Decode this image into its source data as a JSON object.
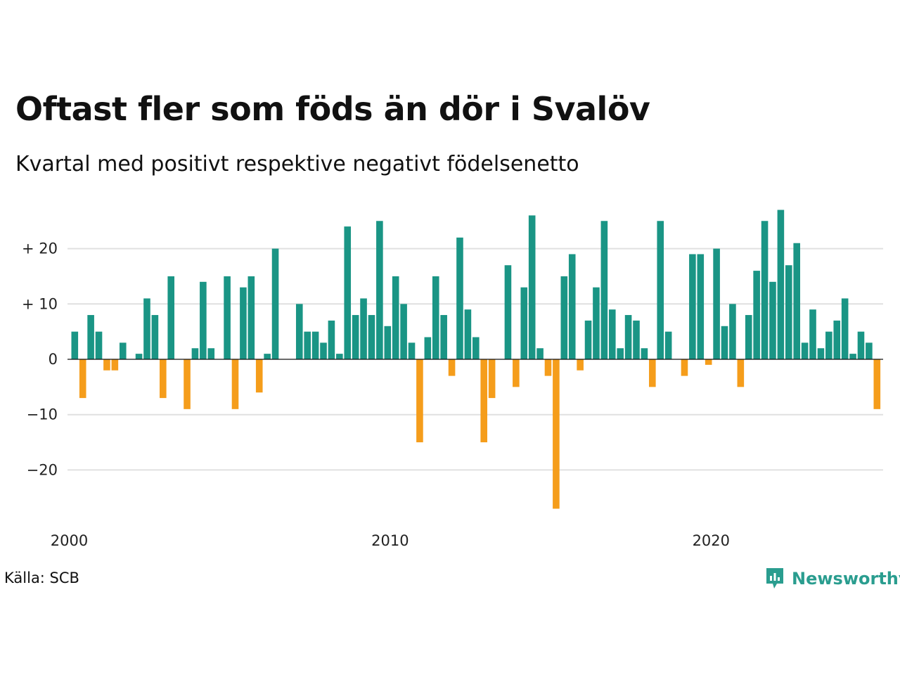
{
  "header": {
    "title": "Oftast fler som föds än dör i Svalöv",
    "subtitle": "Kvartal med positivt respektive negativt födelsenetto"
  },
  "footer": {
    "source": "Källa: SCB",
    "brand": "Newsworthy"
  },
  "colors": {
    "positive": "#1a9585",
    "negative": "#f59d1b",
    "grid": "#e0e0e0",
    "brand": "#2a9d8f"
  },
  "chart_data": {
    "type": "bar",
    "title": "Oftast fler som föds än dör i Svalöv",
    "subtitle": "Kvartal med positivt respektive negativt födelsenetto",
    "x_start": "2000 Q1",
    "x_ticks": [
      "2000",
      "2010",
      "2020"
    ],
    "y_ticks": [
      {
        "value": 20,
        "label": "+ 20"
      },
      {
        "value": 10,
        "label": "+ 10"
      },
      {
        "value": 0,
        "label": "0"
      },
      {
        "value": -10,
        "label": "−10"
      },
      {
        "value": -20,
        "label": "−20"
      }
    ],
    "ylim": [
      -27,
      27
    ],
    "grid": true,
    "categories": [
      "2000 Q1",
      "2000 Q2",
      "2000 Q3",
      "2000 Q4",
      "2001 Q1",
      "2001 Q2",
      "2001 Q3",
      "2001 Q4",
      "2002 Q1",
      "2002 Q2",
      "2002 Q3",
      "2002 Q4",
      "2003 Q1",
      "2003 Q2",
      "2003 Q3",
      "2003 Q4",
      "2004 Q1",
      "2004 Q2",
      "2004 Q3",
      "2004 Q4",
      "2005 Q1",
      "2005 Q2",
      "2005 Q3",
      "2005 Q4",
      "2006 Q1",
      "2006 Q2",
      "2006 Q3",
      "2006 Q4",
      "2007 Q1",
      "2007 Q2",
      "2007 Q3",
      "2007 Q4",
      "2008 Q1",
      "2008 Q2",
      "2008 Q3",
      "2008 Q4",
      "2009 Q1",
      "2009 Q2",
      "2009 Q3",
      "2009 Q4",
      "2010 Q1",
      "2010 Q2",
      "2010 Q3",
      "2010 Q4",
      "2011 Q1",
      "2011 Q2",
      "2011 Q3",
      "2011 Q4",
      "2012 Q1",
      "2012 Q2",
      "2012 Q3",
      "2012 Q4",
      "2013 Q1",
      "2013 Q2",
      "2013 Q3",
      "2013 Q4",
      "2014 Q1",
      "2014 Q2",
      "2014 Q3",
      "2014 Q4",
      "2015 Q1",
      "2015 Q2",
      "2015 Q3",
      "2015 Q4",
      "2016 Q1",
      "2016 Q2",
      "2016 Q3",
      "2016 Q4",
      "2017 Q1",
      "2017 Q2",
      "2017 Q3",
      "2017 Q4",
      "2018 Q1",
      "2018 Q2",
      "2018 Q3",
      "2018 Q4",
      "2019 Q1",
      "2019 Q2",
      "2019 Q3",
      "2019 Q4",
      "2020 Q1",
      "2020 Q2",
      "2020 Q3",
      "2020 Q4",
      "2021 Q1",
      "2021 Q2",
      "2021 Q3",
      "2021 Q4",
      "2022 Q1",
      "2022 Q2",
      "2022 Q3",
      "2022 Q4",
      "2023 Q1",
      "2023 Q2",
      "2023 Q3",
      "2023 Q4",
      "2024 Q1",
      "2024 Q2",
      "2024 Q3",
      "2024 Q4",
      "2025 Q1"
    ],
    "values": [
      5,
      -7,
      8,
      5,
      -2,
      -2,
      3,
      0,
      1,
      11,
      8,
      -7,
      15,
      0,
      -9,
      2,
      14,
      2,
      0,
      15,
      -9,
      13,
      15,
      -6,
      1,
      20,
      0,
      0,
      10,
      5,
      5,
      3,
      7,
      1,
      24,
      8,
      11,
      8,
      25,
      6,
      15,
      10,
      3,
      -15,
      4,
      15,
      8,
      -3,
      22,
      9,
      4,
      -15,
      -7,
      0,
      17,
      -5,
      13,
      26,
      2,
      -3,
      -27,
      15,
      19,
      -2,
      7,
      13,
      25,
      9,
      2,
      8,
      7,
      2,
      -5,
      25,
      5,
      0,
      -3,
      19,
      19,
      -1,
      20,
      6,
      10,
      -5,
      8,
      16,
      25,
      14,
      27,
      17,
      21,
      3,
      9,
      2,
      5,
      7,
      11,
      1,
      5,
      3,
      -9
    ]
  }
}
